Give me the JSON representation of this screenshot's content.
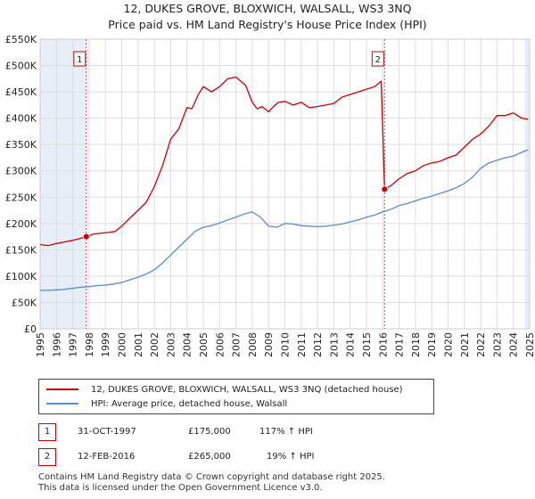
{
  "title_line1": "12, DUKES GROVE, BLOXWICH, WALSALL, WS3 3NQ",
  "title_line2": "Price paid vs. HM Land Registry's House Price Index (HPI)",
  "colors": {
    "price": "#cc0000",
    "hpi": "#5b8ccc",
    "grid": "#dddddd",
    "shade": "#e8eef8",
    "vline": "#dd4444"
  },
  "chart_data": {
    "type": "line",
    "title": "Price paid vs. HM Land Registry's House Price Index (HPI)",
    "xlim": [
      1995,
      2025
    ],
    "ylim": [
      0,
      550000
    ],
    "x_ticks": [
      "1995",
      "1996",
      "1997",
      "1998",
      "1999",
      "2000",
      "2001",
      "2002",
      "2003",
      "2004",
      "2005",
      "2006",
      "2007",
      "2008",
      "2009",
      "2010",
      "2011",
      "2012",
      "2013",
      "2014",
      "2015",
      "2016",
      "2017",
      "2018",
      "2019",
      "2020",
      "2021",
      "2022",
      "2023",
      "2024",
      "2025"
    ],
    "y_ticks": [
      {
        "value": 0,
        "label": "£0"
      },
      {
        "value": 50000,
        "label": "£50K"
      },
      {
        "value": 100000,
        "label": "£100K"
      },
      {
        "value": 150000,
        "label": "£150K"
      },
      {
        "value": 200000,
        "label": "£200K"
      },
      {
        "value": 250000,
        "label": "£250K"
      },
      {
        "value": 300000,
        "label": "£300K"
      },
      {
        "value": 350000,
        "label": "£350K"
      },
      {
        "value": 400000,
        "label": "£400K"
      },
      {
        "value": 450000,
        "label": "£450K"
      },
      {
        "value": 500000,
        "label": "£500K"
      },
      {
        "value": 550000,
        "label": "£550K"
      }
    ],
    "series": [
      {
        "name": "12, DUKES GROVE, BLOXWICH, WALSALL, WS3 3NQ (detached house)",
        "color": "#cc0000",
        "x": [
          1995.0,
          1995.5,
          1996.0,
          1996.5,
          1997.0,
          1997.5,
          1997.83,
          1998.3,
          1998.8,
          1999.2,
          1999.6,
          2000.0,
          2000.5,
          2001.0,
          2001.5,
          2002.0,
          2002.5,
          2003.0,
          2003.5,
          2004.0,
          2004.3,
          2004.7,
          2005.0,
          2005.5,
          2006.0,
          2006.5,
          2007.0,
          2007.3,
          2007.6,
          2008.0,
          2008.3,
          2008.6,
          2009.0,
          2009.3,
          2009.6,
          2010.0,
          2010.5,
          2011.0,
          2011.5,
          2012.0,
          2012.5,
          2013.0,
          2013.5,
          2014.0,
          2014.5,
          2015.0,
          2015.5,
          2015.9,
          2016.11,
          2016.5,
          2017.0,
          2017.5,
          2018.0,
          2018.5,
          2019.0,
          2019.5,
          2020.0,
          2020.5,
          2021.0,
          2021.5,
          2022.0,
          2022.5,
          2023.0,
          2023.5,
          2024.0,
          2024.5,
          2024.9
        ],
        "values": [
          160000,
          158000,
          162000,
          165000,
          168000,
          172000,
          175000,
          180000,
          182000,
          183000,
          185000,
          195000,
          210000,
          225000,
          240000,
          270000,
          310000,
          360000,
          380000,
          420000,
          418000,
          445000,
          460000,
          450000,
          460000,
          475000,
          478000,
          470000,
          462000,
          430000,
          418000,
          422000,
          412000,
          422000,
          430000,
          432000,
          425000,
          430000,
          420000,
          422000,
          425000,
          428000,
          440000,
          445000,
          450000,
          455000,
          460000,
          470000,
          265000,
          272000,
          285000,
          295000,
          300000,
          310000,
          315000,
          318000,
          325000,
          330000,
          345000,
          360000,
          370000,
          385000,
          405000,
          405000,
          410000,
          400000,
          398000
        ]
      },
      {
        "name": "HPI: Average price, detached house, Walsall",
        "color": "#5b8ccc",
        "x": [
          1995.0,
          1995.5,
          1996.0,
          1996.5,
          1997.0,
          1997.5,
          1998.0,
          1998.5,
          1999.0,
          1999.5,
          2000.0,
          2000.5,
          2001.0,
          2001.5,
          2002.0,
          2002.5,
          2003.0,
          2003.5,
          2004.0,
          2004.5,
          2005.0,
          2005.5,
          2006.0,
          2006.5,
          2007.0,
          2007.5,
          2008.0,
          2008.5,
          2009.0,
          2009.5,
          2010.0,
          2010.5,
          2011.0,
          2011.5,
          2012.0,
          2012.5,
          2013.0,
          2013.5,
          2014.0,
          2014.5,
          2015.0,
          2015.5,
          2016.0,
          2016.5,
          2017.0,
          2017.5,
          2018.0,
          2018.5,
          2019.0,
          2019.5,
          2020.0,
          2020.5,
          2021.0,
          2021.5,
          2022.0,
          2022.5,
          2023.0,
          2023.5,
          2024.0,
          2024.5,
          2024.9
        ],
        "values": [
          73000,
          73000,
          74000,
          75000,
          77000,
          79000,
          80000,
          82000,
          83000,
          85000,
          88000,
          93000,
          98000,
          104000,
          112000,
          125000,
          140000,
          155000,
          170000,
          185000,
          193000,
          196000,
          201000,
          207000,
          212000,
          218000,
          222000,
          212000,
          195000,
          193000,
          200000,
          199000,
          196000,
          195000,
          194000,
          195000,
          197000,
          199000,
          203000,
          207000,
          212000,
          216000,
          222000,
          227000,
          234000,
          238000,
          243000,
          248000,
          252000,
          257000,
          262000,
          268000,
          276000,
          288000,
          305000,
          315000,
          320000,
          325000,
          328000,
          335000,
          340000
        ]
      }
    ],
    "markers": [
      {
        "label": "1",
        "x": 1997.83,
        "y": 175000
      },
      {
        "label": "2",
        "x": 2016.11,
        "y": 265000
      }
    ],
    "shaded_ranges": [
      [
        1995.0,
        1997.83
      ],
      [
        2024.7,
        2025.0
      ]
    ]
  },
  "legend": {
    "price_label": "12, DUKES GROVE, BLOXWICH, WALSALL, WS3 3NQ (detached house)",
    "hpi_label": "HPI: Average price, detached house, Walsall"
  },
  "transactions": [
    {
      "num": "1",
      "date": "31-OCT-1997",
      "price": "£175,000",
      "hpi": "117% ↑ HPI"
    },
    {
      "num": "2",
      "date": "12-FEB-2016",
      "price": "£265,000",
      "hpi": "19% ↑ HPI"
    }
  ],
  "footer": {
    "line1": "Contains HM Land Registry data © Crown copyright and database right 2025.",
    "line2": "This data is licensed under the Open Government Licence v3.0."
  }
}
